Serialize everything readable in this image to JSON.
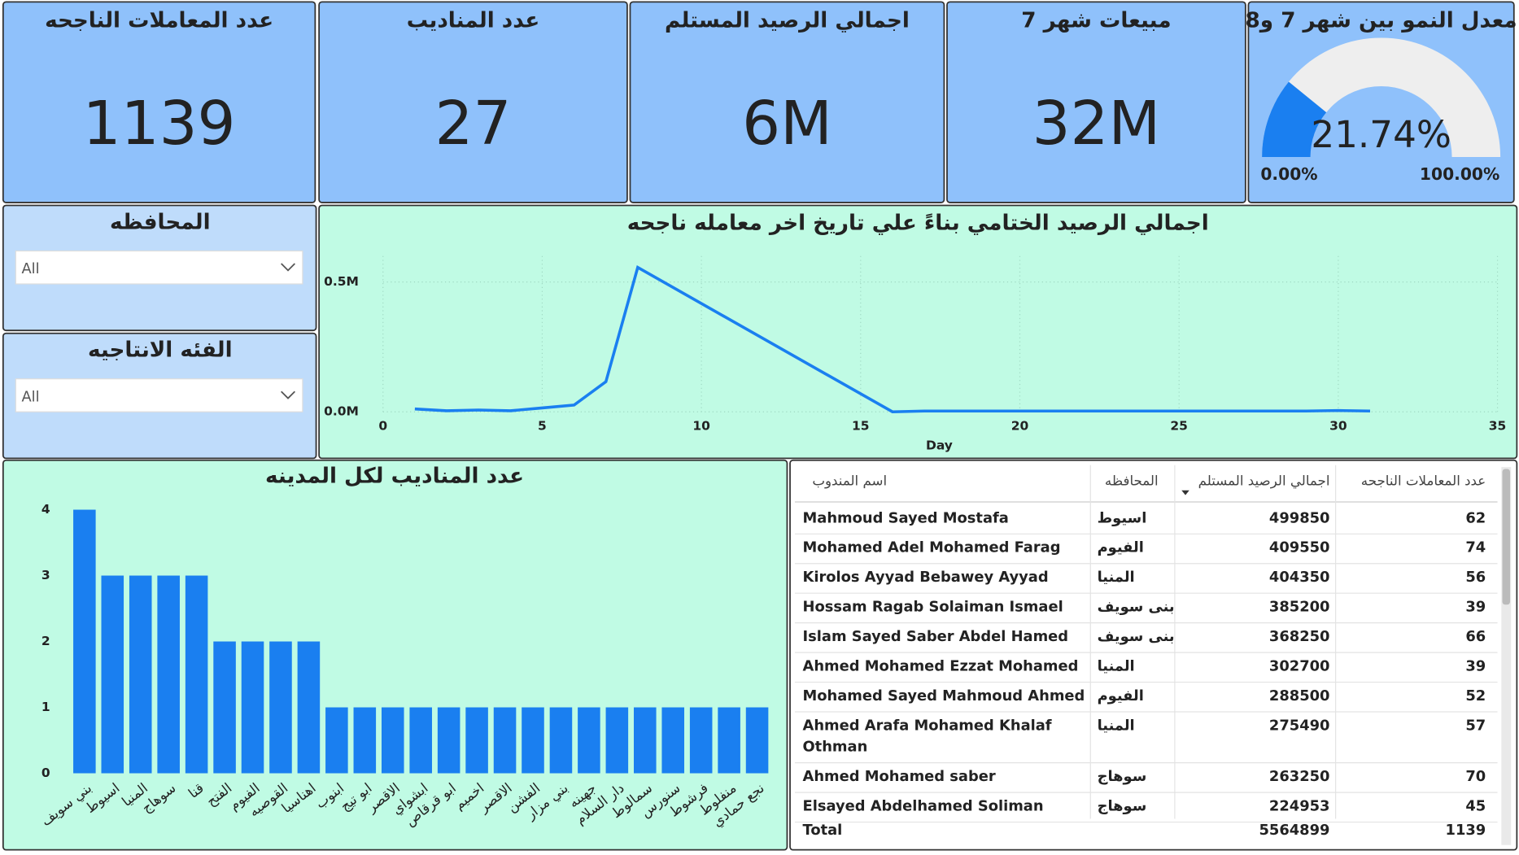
{
  "kpis": [
    {
      "title": "عدد المعاملات الناجحه",
      "value": 1139
    },
    {
      "title": "عدد المناديب",
      "value": 27
    },
    {
      "title": "اجمالي الرصيد المستلم",
      "value": "6M"
    },
    {
      "title": "مبيعات شهر 7",
      "value": "32M"
    }
  ],
  "filters": [
    {
      "title": "المحافظه",
      "value": "All"
    },
    {
      "title": "الفئه الانتاجيه",
      "value": "All"
    }
  ],
  "chart_data": [
    {
      "type": "gauge",
      "title": "معدل النمو بين شهر 7 و8",
      "value": 21.74,
      "value_label": "21.74%",
      "range": [
        {
          "value": 0,
          "label": "0.00%"
        },
        {
          "value": 100,
          "label": "100.00%"
        }
      ],
      "color": "#1a7ff0"
    },
    {
      "type": "line",
      "title": "اجمالي الرصيد الختامي بناءً علي تاريخ اخر معامله ناجحه",
      "x_label": "Day",
      "color": "#1a7ff0",
      "x": [
        1,
        2,
        3,
        4,
        5,
        6,
        7,
        8,
        16,
        17,
        18,
        19,
        20,
        21,
        22,
        23,
        24,
        25,
        26,
        27,
        28,
        29,
        30,
        31
      ],
      "values": [
        0.011,
        0.004,
        0.007,
        0.004,
        0.015,
        0.026,
        0.116,
        0.556,
        0.0,
        0.003,
        0.003,
        0.003,
        0.003,
        0.003,
        0.003,
        0.003,
        0.003,
        0.003,
        0.003,
        0.003,
        0.003,
        0.003,
        0.005,
        0.003
      ],
      "xlim": [
        0,
        35
      ],
      "xticks": [
        0,
        5,
        10,
        15,
        20,
        25,
        30,
        35
      ],
      "ylim": [
        0,
        0.6
      ],
      "yticks": [
        {
          "value": 0,
          "label": "0.0M"
        },
        {
          "value": 0.5,
          "label": "0.5M"
        }
      ],
      "grid": true
    },
    {
      "type": "bar",
      "title": "عدد المناديب لكل المدينه",
      "color": "#1a7ff0",
      "categories": [
        "بني سويف",
        "اسيوط",
        "المنيا",
        "سوهاج",
        "قنا",
        "الفتح",
        "الفيوم",
        "القوصيه",
        "اهناسيا",
        "ابنوب",
        "ابو تيج",
        "الاقصر",
        "ابشواي",
        "ابو قرقاص",
        "اخميم",
        "الاقصر",
        "الفشن",
        "بني مزار",
        "جهينه",
        "دار السلام",
        "سمالوط",
        "سنورس",
        "فرشوط",
        "منفلوط",
        "نجع حمادي"
      ],
      "values": [
        4,
        3,
        3,
        3,
        3,
        2,
        2,
        2,
        2,
        1,
        1,
        1,
        1,
        1,
        1,
        1,
        1,
        1,
        1,
        1,
        1,
        1,
        1,
        1,
        1
      ],
      "ylim": [
        0,
        4.3
      ],
      "yticks": [
        0,
        1,
        2,
        3,
        4
      ]
    }
  ],
  "table": {
    "columns": [
      "اسم المندوب",
      "المحافظه",
      "اجمالي الرصيد المستلم",
      "عدد المعاملات الناجحه"
    ],
    "rows": [
      [
        "Mahmoud Sayed Mostafa",
        "اسيوط",
        499850,
        62
      ],
      [
        "Mohamed Adel Mohamed Farag",
        "الفيوم",
        409550,
        74
      ],
      [
        "Kirolos Ayyad Bebawey Ayyad",
        "المنيا",
        404350,
        56
      ],
      [
        "Hossam Ragab Solaiman Ismael",
        "بنى سويف",
        385200,
        39
      ],
      [
        "Islam Sayed Saber Abdel Hamed",
        "بنى سويف",
        368250,
        66
      ],
      [
        "Ahmed Mohamed Ezzat Mohamed",
        "المنيا",
        302700,
        39
      ],
      [
        "Mohamed Sayed Mahmoud Ahmed",
        "الفيوم",
        288500,
        52
      ],
      [
        "Ahmed Arafa Mohamed Khalaf Othman",
        "المنيا",
        275490,
        57
      ],
      [
        "Ahmed Mohamed saber",
        "سوهاج",
        263250,
        70
      ],
      [
        "Elsayed Abdelhamed Soliman",
        "سوهاج",
        224953,
        45
      ]
    ],
    "total": {
      "label": "Total",
      "values": [
        5564899,
        1139
      ]
    }
  }
}
